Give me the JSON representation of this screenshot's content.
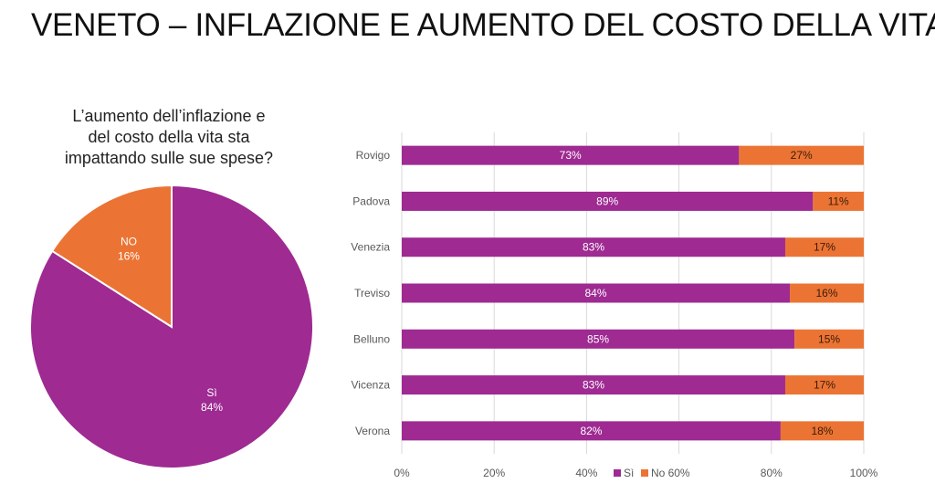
{
  "page": {
    "title": "VENETO – INFLAZIONE E AUMENTO DEL COSTO DELLA VITA"
  },
  "colors": {
    "si": "#9E2A92",
    "no": "#EB7434",
    "grid": "#D9D9D9",
    "axis_text": "#595959"
  },
  "chart_data": [
    {
      "type": "pie",
      "title_lines": [
        "L’aumento dell’inflazione e",
        "del costo della vita sta",
        "impattando sulle sue spese?"
      ],
      "slices": [
        {
          "label": "NO",
          "value": 16,
          "value_label": "16%",
          "color": "#EB7434"
        },
        {
          "label": "Sì",
          "value": 84,
          "value_label": "84%",
          "color": "#9E2A92"
        }
      ]
    },
    {
      "type": "bar",
      "orientation": "horizontal",
      "stacked": "percent",
      "categories": [
        "Rovigo",
        "Padova",
        "Venezia",
        "Treviso",
        "Belluno",
        "Vicenza",
        "Verona"
      ],
      "series": [
        {
          "name": "Sì",
          "values": [
            73,
            89,
            83,
            84,
            85,
            83,
            82
          ],
          "labels": [
            "73%",
            "89%",
            "83%",
            "84%",
            "85%",
            "83%",
            "82%"
          ],
          "color": "#9E2A92"
        },
        {
          "name": "No",
          "values": [
            27,
            11,
            17,
            16,
            15,
            17,
            18
          ],
          "labels": [
            "27%",
            "11%",
            "17%",
            "16%",
            "15%",
            "17%",
            "18%"
          ],
          "color": "#EB7434"
        }
      ],
      "xlim": [
        0,
        100
      ],
      "xticks": [
        0,
        20,
        40,
        60,
        80,
        100
      ],
      "xtick_labels": [
        "0%",
        "20%",
        "40%",
        "60%",
        "80%",
        "100%"
      ],
      "grid": true,
      "legend": "bottom-center"
    }
  ]
}
